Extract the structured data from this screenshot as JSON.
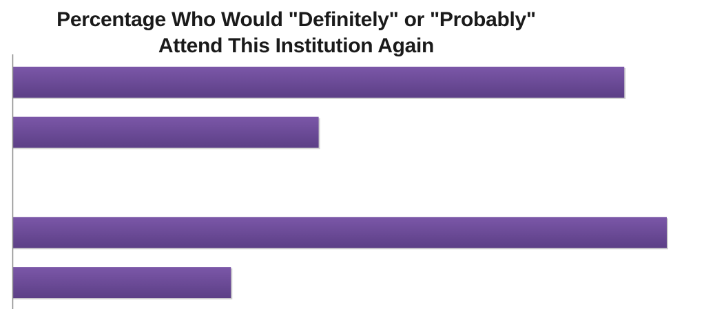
{
  "chart_data": {
    "type": "bar",
    "orientation": "horizontal",
    "title_lines": [
      "Percentage Who Would \"Definitely\" or \"Probably\"",
      "Attend This Institution Again"
    ],
    "categories": [
      "",
      "",
      "",
      "",
      ""
    ],
    "values": [
      93.5,
      46.8,
      0,
      100,
      33.4
    ],
    "xlim": [
      0,
      100
    ],
    "grid": false,
    "legend": "none",
    "bar_color": "#7b57a8",
    "bar_color_dark": "#5c3f86",
    "axis_color": "#8c8c8c"
  }
}
